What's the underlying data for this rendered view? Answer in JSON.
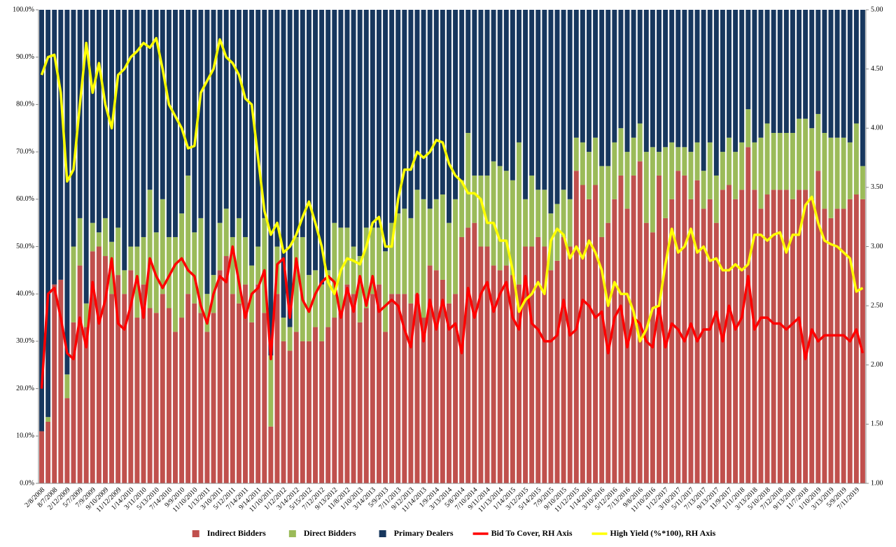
{
  "chart_data": {
    "type": "bar",
    "stacked": true,
    "categories": [
      "2/8/2008",
      null,
      "8/7/2008",
      null,
      "2/12/2009",
      null,
      "5/7/2009",
      null,
      "7/9/2009",
      null,
      "9/10/2009",
      null,
      "11/12/2009",
      null,
      "1/14/2010",
      null,
      "3/11/2010",
      null,
      "5/13/2010",
      null,
      "7/14/2010",
      null,
      "9/9/2010",
      null,
      "11/10/2010",
      null,
      "1/13/2011",
      null,
      "3/10/2011",
      null,
      "5/12/2011",
      null,
      "7/14/2011",
      null,
      "9/14/2011",
      null,
      "11/10/2011",
      null,
      "1/12/2012",
      null,
      "3/14/2012",
      null,
      "5/15/2012",
      null,
      "7/12/2012",
      null,
      "9/13/2012",
      null,
      "11/8/2012",
      null,
      "1/10/2013",
      null,
      "3/14/2013",
      null,
      "5/9/2013",
      null,
      "7/11/2013",
      null,
      "9/12/2013",
      null,
      "11/14/2013",
      null,
      "1/9/2014",
      null,
      "3/13/2014",
      null,
      "5/8/2014",
      null,
      "7/10/2014",
      null,
      "9/11/2014",
      null,
      "11/13/2014",
      null,
      "1/14/2015",
      null,
      "3/12/2015",
      null,
      "5/14/2015",
      null,
      "7/9/2015",
      null,
      "9/10/2015",
      null,
      "11/12/2015",
      null,
      "1/14/2016",
      null,
      "3/10/2016",
      null,
      "5/12/2016",
      null,
      "7/13/2016",
      null,
      "9/8/2016",
      null,
      "11/10/2016",
      null,
      "1/12/2017",
      null,
      "3/10/2017",
      null,
      "5/11/2017",
      null,
      "7/13/2017",
      null,
      "9/13/2017",
      null,
      "11/9/2017",
      null,
      "1/11/2018",
      null,
      "3/13/2018",
      null,
      "5/10/2018",
      null,
      "7/12/2018",
      null,
      "9/13/2018",
      null,
      "11/7/2018",
      null,
      "1/10/2019",
      null,
      "3/13/2019",
      null,
      "5/9/2019",
      null,
      "7/11/2019",
      null
    ],
    "series": [
      {
        "name": "Indirect Bidders",
        "color": "#c0504d",
        "values": [
          11,
          13,
          42,
          43,
          18,
          34,
          46,
          33,
          49,
          50,
          48,
          40,
          44,
          40,
          45,
          35,
          42,
          37,
          36,
          40,
          37,
          32,
          35,
          40,
          38,
          36,
          32,
          36,
          45,
          48,
          40,
          38,
          42,
          34,
          42,
          36,
          12,
          40,
          30,
          28,
          32,
          30,
          30,
          33,
          30,
          33,
          35,
          36,
          42,
          40,
          34,
          37,
          40,
          42,
          32,
          40,
          40,
          40,
          38,
          40,
          35,
          46,
          45,
          43,
          38,
          40,
          52,
          54,
          55,
          50,
          50,
          46,
          45,
          46,
          44,
          42,
          50,
          50,
          52,
          50,
          45,
          47,
          52,
          50,
          66,
          63,
          60,
          63,
          52,
          55,
          60,
          65,
          58,
          65,
          68,
          55,
          53,
          65,
          56,
          60,
          66,
          65,
          60,
          64,
          58,
          60,
          55,
          62,
          63,
          60,
          62,
          71,
          62,
          58,
          61,
          62,
          62,
          62,
          60,
          62,
          62,
          60,
          66,
          58,
          56,
          58,
          58,
          60,
          61,
          60
        ]
      },
      {
        "name": "Direct Bidders",
        "color": "#9bbb59",
        "values": [
          0,
          1,
          0,
          0,
          5,
          16,
          10,
          5,
          6,
          3,
          8,
          11,
          10,
          5,
          5,
          15,
          10,
          25,
          17,
          20,
          15,
          20,
          22,
          25,
          15,
          20,
          8,
          8,
          10,
          10,
          12,
          18,
          10,
          12,
          8,
          20,
          15,
          10,
          5,
          5,
          20,
          22,
          14,
          12,
          12,
          12,
          20,
          18,
          12,
          10,
          14,
          17,
          14,
          12,
          17,
          15,
          17,
          18,
          18,
          22,
          25,
          12,
          15,
          18,
          17,
          20,
          12,
          20,
          10,
          15,
          15,
          22,
          22,
          20,
          20,
          30,
          10,
          15,
          10,
          12,
          12,
          12,
          10,
          10,
          7,
          9,
          10,
          10,
          15,
          12,
          12,
          10,
          12,
          8,
          8,
          15,
          18,
          5,
          15,
          12,
          5,
          6,
          10,
          8,
          8,
          12,
          10,
          8,
          10,
          10,
          10,
          8,
          10,
          15,
          15,
          12,
          12,
          12,
          14,
          15,
          15,
          15,
          12,
          16,
          17,
          15,
          15,
          12,
          15,
          7
        ]
      },
      {
        "name": "Primary Dealers",
        "color": "#17375e",
        "values": [
          89,
          86,
          58,
          57,
          77,
          50,
          44,
          62,
          45,
          47,
          44,
          49,
          46,
          55,
          50,
          50,
          48,
          38,
          47,
          40,
          48,
          48,
          43,
          35,
          47,
          44,
          60,
          56,
          45,
          42,
          48,
          44,
          48,
          54,
          50,
          44,
          73,
          50,
          65,
          67,
          48,
          48,
          56,
          55,
          58,
          55,
          45,
          46,
          46,
          50,
          52,
          46,
          46,
          46,
          51,
          45,
          43,
          42,
          44,
          38,
          40,
          42,
          40,
          39,
          45,
          40,
          36,
          26,
          35,
          35,
          35,
          32,
          33,
          34,
          36,
          28,
          40,
          35,
          38,
          38,
          43,
          41,
          38,
          40,
          27,
          28,
          30,
          27,
          33,
          33,
          28,
          25,
          30,
          27,
          24,
          30,
          29,
          30,
          29,
          28,
          29,
          29,
          30,
          28,
          34,
          28,
          35,
          30,
          27,
          30,
          28,
          21,
          28,
          27,
          24,
          26,
          26,
          26,
          26,
          23,
          23,
          25,
          22,
          26,
          27,
          27,
          27,
          28,
          24,
          33
        ]
      },
      {
        "name": "Bid To Cover, RH Axis",
        "type": "line",
        "axis": "y2",
        "color": "#ff0000",
        "values": [
          1.8,
          2.6,
          2.65,
          2.4,
          2.1,
          2.05,
          2.4,
          2.15,
          2.7,
          2.35,
          2.55,
          2.9,
          2.35,
          2.3,
          2.5,
          2.75,
          2.4,
          2.9,
          2.75,
          2.65,
          2.75,
          2.85,
          2.9,
          2.8,
          2.75,
          2.5,
          2.35,
          2.6,
          2.75,
          2.7,
          3.0,
          2.7,
          2.4,
          2.6,
          2.65,
          2.8,
          2.05,
          2.85,
          2.9,
          2.4,
          2.9,
          2.55,
          2.45,
          2.6,
          2.7,
          2.75,
          2.7,
          2.4,
          2.65,
          2.45,
          2.75,
          2.5,
          2.75,
          2.45,
          2.5,
          2.55,
          2.5,
          2.3,
          2.15,
          2.6,
          2.2,
          2.55,
          2.3,
          2.55,
          2.3,
          2.35,
          2.1,
          2.65,
          2.4,
          2.6,
          2.7,
          2.45,
          2.6,
          2.7,
          2.4,
          2.3,
          2.75,
          2.35,
          2.3,
          2.2,
          2.2,
          2.25,
          2.55,
          2.25,
          2.3,
          2.55,
          2.5,
          2.4,
          2.45,
          2.1,
          2.4,
          2.5,
          2.15,
          2.4,
          2.35,
          2.2,
          2.15,
          2.5,
          2.15,
          2.35,
          2.3,
          2.2,
          2.35,
          2.2,
          2.3,
          2.3,
          2.45,
          2.2,
          2.5,
          2.3,
          2.4,
          2.75,
          2.3,
          2.4,
          2.4,
          2.35,
          2.35,
          2.3,
          2.35,
          2.4,
          2.05,
          2.3,
          2.2,
          2.25,
          2.25,
          2.25,
          2.25,
          2.2,
          2.3,
          2.1
        ]
      },
      {
        "name": "High Yield (%*100), RH Axis",
        "type": "line",
        "axis": "y2",
        "color": "#ffff00",
        "values": [
          4.45,
          4.6,
          4.62,
          4.3,
          3.55,
          3.65,
          4.2,
          4.72,
          4.3,
          4.55,
          4.2,
          4.0,
          4.45,
          4.5,
          4.6,
          4.65,
          4.72,
          4.68,
          4.76,
          4.5,
          4.2,
          4.1,
          4.0,
          3.83,
          3.85,
          4.3,
          4.4,
          4.5,
          4.75,
          4.6,
          4.55,
          4.45,
          4.25,
          4.2,
          3.75,
          3.3,
          3.1,
          3.2,
          2.95,
          3.0,
          3.1,
          3.25,
          3.38,
          3.2,
          3.0,
          2.7,
          2.6,
          2.8,
          2.9,
          2.88,
          2.85,
          3.0,
          3.2,
          3.25,
          3.0,
          3.0,
          3.4,
          3.65,
          3.65,
          3.8,
          3.75,
          3.8,
          3.9,
          3.88,
          3.7,
          3.6,
          3.55,
          3.45,
          3.45,
          3.4,
          3.2,
          3.2,
          3.05,
          3.05,
          2.8,
          2.45,
          2.55,
          2.6,
          2.7,
          2.6,
          3.05,
          3.15,
          3.1,
          2.9,
          3.0,
          2.9,
          3.05,
          2.95,
          2.8,
          2.5,
          2.7,
          2.6,
          2.6,
          2.45,
          2.2,
          2.3,
          2.48,
          2.5,
          2.85,
          3.15,
          2.95,
          3.0,
          3.15,
          2.95,
          3.0,
          2.88,
          2.9,
          2.8,
          2.8,
          2.85,
          2.8,
          2.85,
          3.1,
          3.1,
          3.05,
          3.1,
          3.12,
          2.95,
          3.1,
          3.1,
          3.35,
          3.42,
          3.2,
          3.05,
          3.02,
          3.0,
          2.95,
          2.9,
          2.62,
          2.65
        ]
      }
    ],
    "ylim": [
      0,
      100
    ],
    "yticks": [
      {
        "value": 0,
        "label": "0.0%"
      },
      {
        "value": 10,
        "label": "10.0%"
      },
      {
        "value": 20,
        "label": "20.0%"
      },
      {
        "value": 30,
        "label": "30.0%"
      },
      {
        "value": 40,
        "label": "40.0%"
      },
      {
        "value": 50,
        "label": "50.0%"
      },
      {
        "value": 60,
        "label": "60.0%"
      },
      {
        "value": 70,
        "label": "70.0%"
      },
      {
        "value": 80,
        "label": "80.0%"
      },
      {
        "value": 90,
        "label": "90.0%"
      },
      {
        "value": 100,
        "label": "100.0%"
      }
    ],
    "y2lim": [
      1,
      5
    ],
    "y2ticks": [
      {
        "value": 1,
        "label": "1.00"
      },
      {
        "value": 1.5,
        "label": "1.50"
      },
      {
        "value": 2,
        "label": "2.00"
      },
      {
        "value": 2.5,
        "label": "2.50"
      },
      {
        "value": 3,
        "label": "3.00"
      },
      {
        "value": 3.5,
        "label": "3.50"
      },
      {
        "value": 4,
        "label": "4.00"
      },
      {
        "value": 4.5,
        "label": "4.50"
      },
      {
        "value": 5,
        "label": "5.00"
      }
    ],
    "legend": "bottom"
  }
}
